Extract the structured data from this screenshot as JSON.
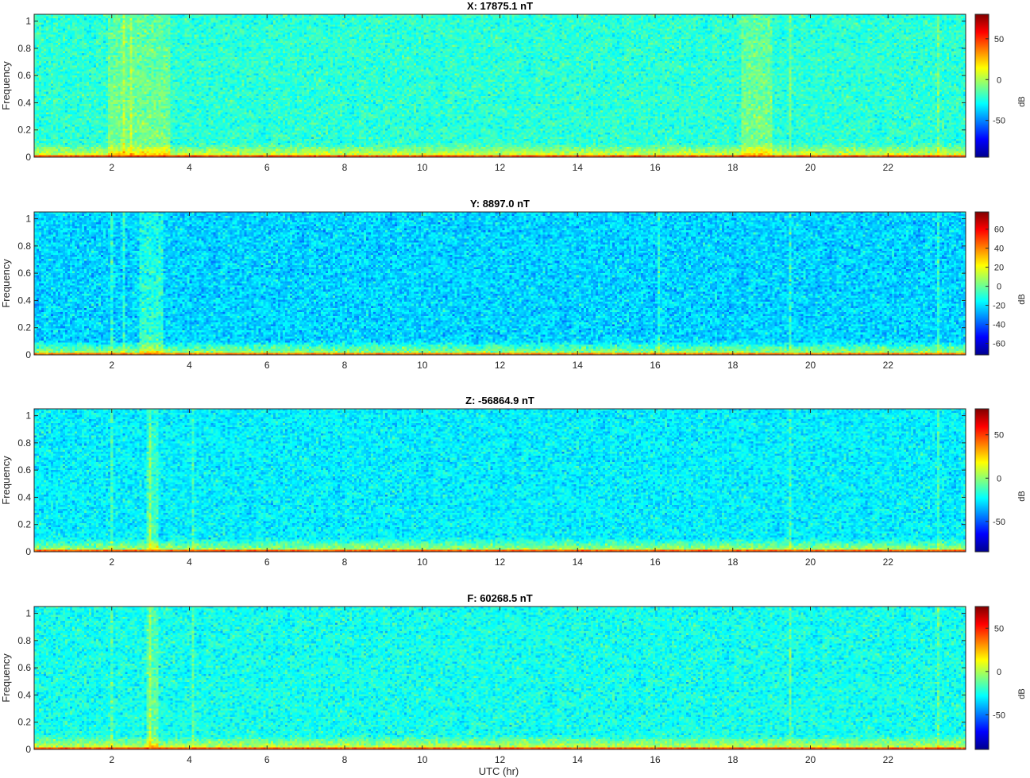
{
  "figure": {
    "xlabel": "UTC (hr)"
  },
  "colormap": {
    "name": "jet",
    "stops": [
      "#00008f",
      "#0000ff",
      "#00ffff",
      "#ffff00",
      "#ff0000",
      "#800000"
    ]
  },
  "chart_data": [
    {
      "type": "heatmap",
      "title": "X: 17875.1 nT",
      "ylabel": "Frequency",
      "xlabel": "",
      "xlim": [
        0,
        24
      ],
      "ylim": [
        0,
        1.05
      ],
      "xticks": [
        2,
        4,
        6,
        8,
        10,
        12,
        14,
        16,
        18,
        20,
        22
      ],
      "yticks": [
        0,
        0.2,
        0.4,
        0.6,
        0.8,
        1
      ],
      "ytick_labels": [
        "0",
        "0.2",
        "0.4",
        "0.6",
        "0.8",
        "1"
      ],
      "colorbar": {
        "label": "dB",
        "range": [
          -95,
          80
        ],
        "ticks": [
          -50,
          0,
          50
        ]
      },
      "background_db": -22,
      "low_freq_band_db": 45,
      "bright_bands_hr": [
        [
          1.9,
          3.5
        ],
        [
          18.2,
          19.0
        ]
      ],
      "vertical_lines_hr": [
        2.3,
        2.5,
        19.5,
        23.3
      ]
    },
    {
      "type": "heatmap",
      "title": "Y: 8897.0 nT",
      "ylabel": "Frequency",
      "xlabel": "",
      "xlim": [
        0,
        24
      ],
      "ylim": [
        0,
        1.05
      ],
      "xticks": [
        2,
        4,
        6,
        8,
        10,
        12,
        14,
        16,
        18,
        20,
        22
      ],
      "yticks": [
        0,
        0.2,
        0.4,
        0.6,
        0.8,
        1
      ],
      "ytick_labels": [
        "0",
        "0.2",
        "0.4",
        "0.6",
        "0.8",
        "1"
      ],
      "colorbar": {
        "label": "dB",
        "range": [
          -72,
          78
        ],
        "ticks": [
          -60,
          -40,
          -20,
          0,
          20,
          40,
          60
        ]
      },
      "background_db": -22,
      "low_freq_band_db": 40,
      "bright_bands_hr": [
        [
          2.7,
          3.3
        ]
      ],
      "vertical_lines_hr": [
        2.0,
        2.3,
        16.1,
        19.5,
        23.3
      ]
    },
    {
      "type": "heatmap",
      "title": "Z: -56864.9 nT",
      "ylabel": "Frequency",
      "xlabel": "",
      "xlim": [
        0,
        24
      ],
      "ylim": [
        0,
        1.05
      ],
      "xticks": [
        2,
        4,
        6,
        8,
        10,
        12,
        14,
        16,
        18,
        20,
        22
      ],
      "yticks": [
        0,
        0.2,
        0.4,
        0.6,
        0.8,
        1
      ],
      "ytick_labels": [
        "0",
        "0.2",
        "0.4",
        "0.6",
        "0.8",
        "1"
      ],
      "colorbar": {
        "label": "dB",
        "range": [
          -85,
          80
        ],
        "ticks": [
          -50,
          0,
          50
        ]
      },
      "background_db": -25,
      "low_freq_band_db": 45,
      "bright_bands_hr": [
        [
          2.9,
          3.2
        ]
      ],
      "vertical_lines_hr": [
        2.0,
        3.0,
        4.1,
        19.5,
        23.3
      ]
    },
    {
      "type": "heatmap",
      "title": "F: 60268.5 nT",
      "ylabel": "Frequency",
      "xlabel": "UTC (hr)",
      "xlim": [
        0,
        24
      ],
      "ylim": [
        0,
        1.05
      ],
      "xticks": [
        2,
        4,
        6,
        8,
        10,
        12,
        14,
        16,
        18,
        20,
        22
      ],
      "yticks": [
        0,
        0.2,
        0.4,
        0.6,
        0.8,
        1
      ],
      "ytick_labels": [
        "0",
        "0.2",
        "0.4",
        "0.6",
        "0.8",
        "1"
      ],
      "colorbar": {
        "label": "dB",
        "range": [
          -90,
          75
        ],
        "ticks": [
          -50,
          0,
          50
        ]
      },
      "background_db": -25,
      "low_freq_band_db": 42,
      "bright_bands_hr": [
        [
          2.9,
          3.2
        ]
      ],
      "vertical_lines_hr": [
        2.0,
        3.0,
        4.1,
        19.5,
        23.3
      ]
    }
  ]
}
